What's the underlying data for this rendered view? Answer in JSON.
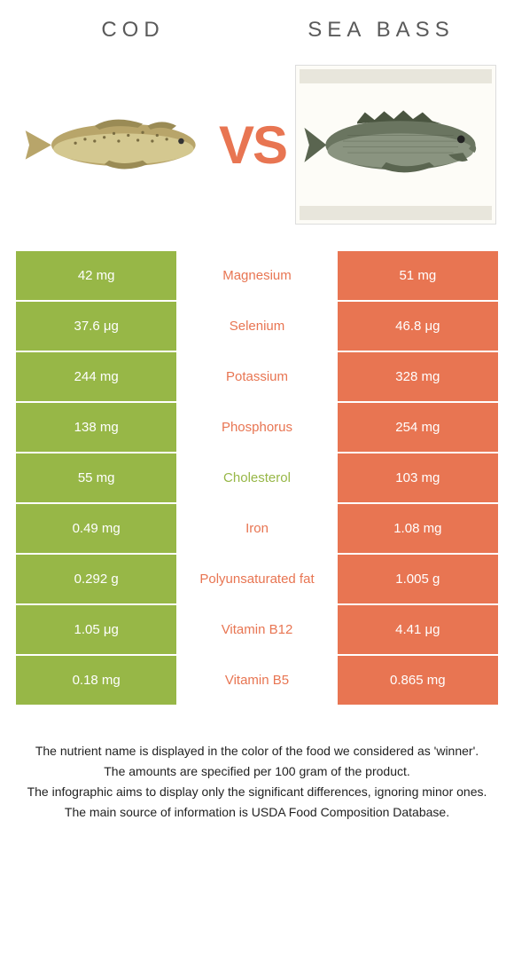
{
  "header": {
    "left_title": "COD",
    "right_title": "SEA BASS",
    "vs_label": "VS"
  },
  "colors": {
    "left": "#97b747",
    "right": "#e87552",
    "background": "#ffffff"
  },
  "table": {
    "rows": [
      {
        "left": "42 mg",
        "label": "Magnesium",
        "right": "51 mg",
        "winner": "right"
      },
      {
        "left": "37.6 μg",
        "label": "Selenium",
        "right": "46.8 μg",
        "winner": "right"
      },
      {
        "left": "244 mg",
        "label": "Potassium",
        "right": "328 mg",
        "winner": "right"
      },
      {
        "left": "138 mg",
        "label": "Phosphorus",
        "right": "254 mg",
        "winner": "right"
      },
      {
        "left": "55 mg",
        "label": "Cholesterol",
        "right": "103 mg",
        "winner": "left"
      },
      {
        "left": "0.49 mg",
        "label": "Iron",
        "right": "1.08 mg",
        "winner": "right"
      },
      {
        "left": "0.292 g",
        "label": "Polyunsaturated fat",
        "right": "1.005 g",
        "winner": "right"
      },
      {
        "left": "1.05 μg",
        "label": "Vitamin B12",
        "right": "4.41 μg",
        "winner": "right"
      },
      {
        "left": "0.18 mg",
        "label": "Vitamin B5",
        "right": "0.865 mg",
        "winner": "right"
      }
    ]
  },
  "footer": {
    "line1": "The nutrient name is displayed in the color of the food we considered as 'winner'.",
    "line2": "The amounts are specified per 100 gram of the product.",
    "line3": "The infographic aims to display only the significant differences, ignoring minor ones.",
    "line4": "The main source of information is USDA Food Composition Database."
  }
}
